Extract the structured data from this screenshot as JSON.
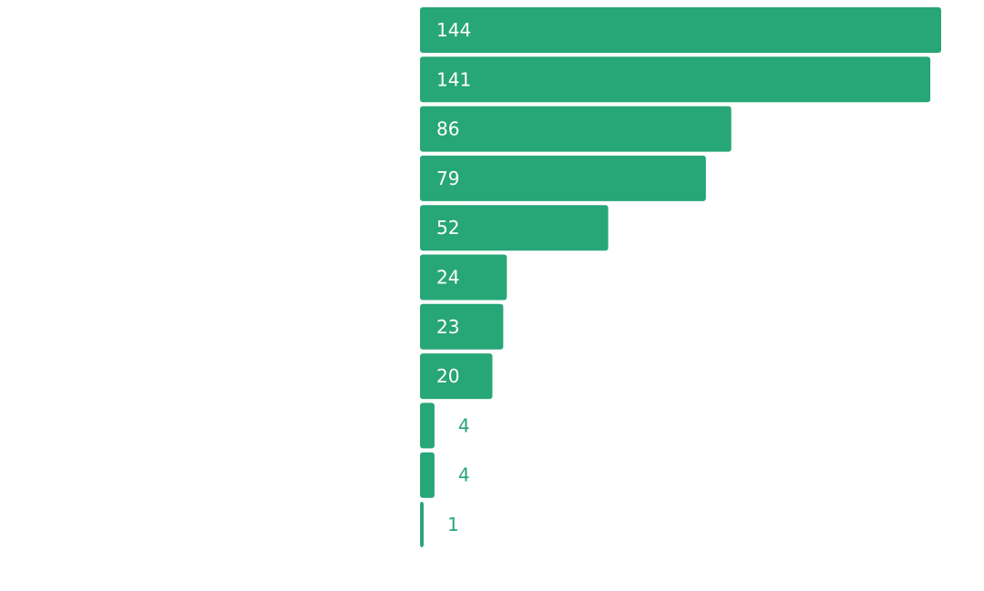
{
  "chart_data": {
    "type": "bar",
    "orientation": "horizontal",
    "categories": [
      "",
      "",
      "",
      "",
      "",
      "",
      "",
      "",
      "",
      "",
      ""
    ],
    "values": [
      144,
      141,
      86,
      79,
      52,
      24,
      23,
      20,
      4,
      4,
      1
    ],
    "data_labels": [
      "144",
      "141",
      "86",
      "79",
      "52",
      "24",
      "23",
      "20",
      "4",
      "4",
      "1"
    ],
    "xlim": [
      0,
      144
    ],
    "grid": false,
    "bar_color": "#27a678",
    "label_color_inside": "#ffffff",
    "label_color_outside": "#27a678"
  }
}
